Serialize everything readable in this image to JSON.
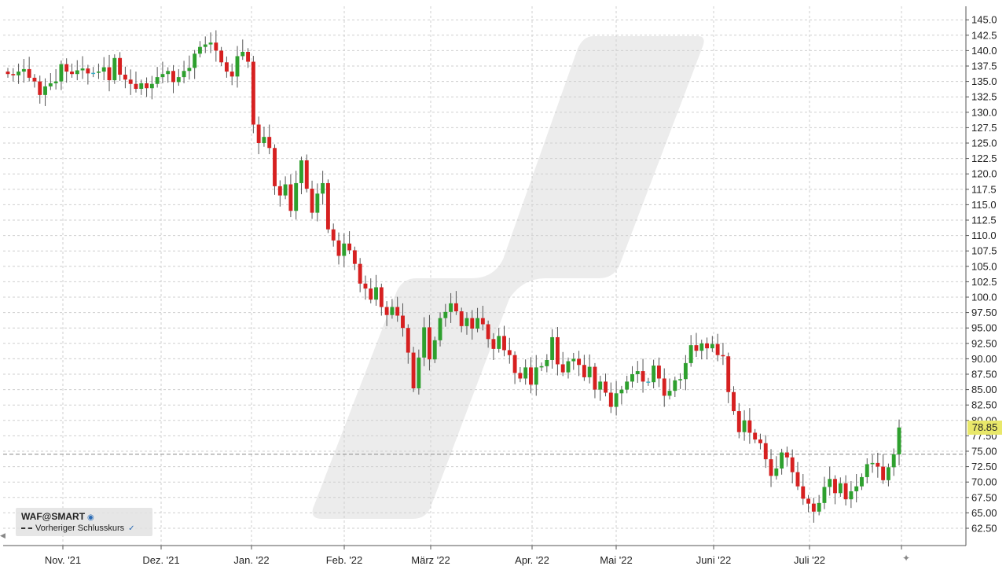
{
  "instrument": {
    "symbol": "WAF@SMART",
    "previous_close_label": "Vorheriger Schlusskurs",
    "last_price_label": "78.85"
  },
  "colors": {
    "up": "#2ea02e",
    "down": "#d62020",
    "flat": "#38b0c8",
    "grid": "#cfcfcf",
    "prev_close_line": "#888888",
    "last_price_badge": "#e9e86a",
    "watermark": "#ececec"
  },
  "icons": [
    "globe-icon",
    "checkmark-icon",
    "left-arrow-icon",
    "plus-icon"
  ],
  "chart_data": {
    "type": "candlestick",
    "x_axis_labels": [
      "Nov. '21",
      "Dez. '21",
      "Jan. '22",
      "Feb. '22",
      "März '22",
      "Apr. '22",
      "Mai '22",
      "Juni '22",
      "Juli '22"
    ],
    "y_axis_ticks": [
      "62.50",
      "65.00",
      "67.50",
      "70.00",
      "72.50",
      "75.00",
      "77.50",
      "80.00",
      "82.50",
      "85.00",
      "87.50",
      "90.00",
      "92.50",
      "95.00",
      "97.50",
      "100.0",
      "102.5",
      "105.0",
      "107.5",
      "110.0",
      "112.5",
      "115.0",
      "117.5",
      "120.0",
      "122.5",
      "125.0",
      "127.5",
      "130.0",
      "132.5",
      "135.0",
      "137.5",
      "140.0",
      "142.5",
      "145.0"
    ],
    "y_range": [
      60,
      147.5
    ],
    "grid": true,
    "previous_close": 74.5,
    "last_price": 78.85,
    "series": [
      {
        "closes": [
          136.2,
          136.0,
          136.6,
          137.0,
          135.6,
          135.0,
          132.8,
          134.2,
          134.7,
          135.0,
          137.8,
          136.6,
          136.2,
          136.8,
          137.1,
          136.3,
          136.4,
          136.6,
          137.3,
          135.2,
          138.8,
          136.1,
          135.3,
          134.6,
          133.8,
          134.7,
          133.9,
          134.6,
          135.7,
          136.2,
          136.7,
          134.9,
          135.7,
          136.7,
          137.2,
          139.5,
          140.6,
          141.0,
          141.3,
          140.0,
          138.1,
          136.6,
          135.8,
          139.1,
          139.8,
          138.2,
          128.0,
          125.0,
          126.0,
          124.2,
          118.0,
          116.5,
          118.3,
          114.0,
          118.5,
          122.2,
          117.6,
          113.7,
          116.8,
          118.5,
          111.0,
          109.2,
          106.7,
          108.7,
          107.6,
          105.4,
          102.2,
          101.4,
          99.6,
          101.6,
          98.4,
          97.1,
          98.4,
          97.0,
          95.0,
          91.0,
          85.2,
          90.2,
          95.1,
          89.9,
          93.0,
          96.6,
          97.6,
          99.0,
          97.7,
          95.3,
          96.6,
          94.9,
          96.6,
          95.6,
          93.2,
          91.6,
          93.7,
          91.4,
          90.6,
          87.7,
          86.8,
          88.6,
          85.8,
          88.6,
          88.8,
          89.8,
          93.5,
          89.1,
          87.8,
          89.6,
          90.0,
          89.0,
          87.0,
          88.7,
          85.0,
          86.3,
          84.5,
          82.2,
          84.4,
          85.0,
          86.3,
          87.5,
          88.0,
          86.3,
          86.2,
          88.9,
          86.8,
          84.0,
          84.8,
          86.5,
          86.7,
          89.3,
          92.2,
          91.3,
          92.5,
          91.7,
          92.4,
          90.6,
          90.4,
          84.6,
          81.5,
          78.1,
          80.0,
          78.0,
          76.9,
          76.3,
          73.7,
          71.0,
          72.2,
          74.8,
          74.0,
          71.6,
          69.3,
          67.3,
          66.5,
          65.2,
          66.6,
          69.2,
          70.5,
          68.2,
          69.8,
          67.2,
          68.5,
          69.3,
          70.8,
          72.9,
          73.1,
          72.5,
          70.3,
          72.4,
          74.5,
          78.85
        ]
      }
    ]
  }
}
